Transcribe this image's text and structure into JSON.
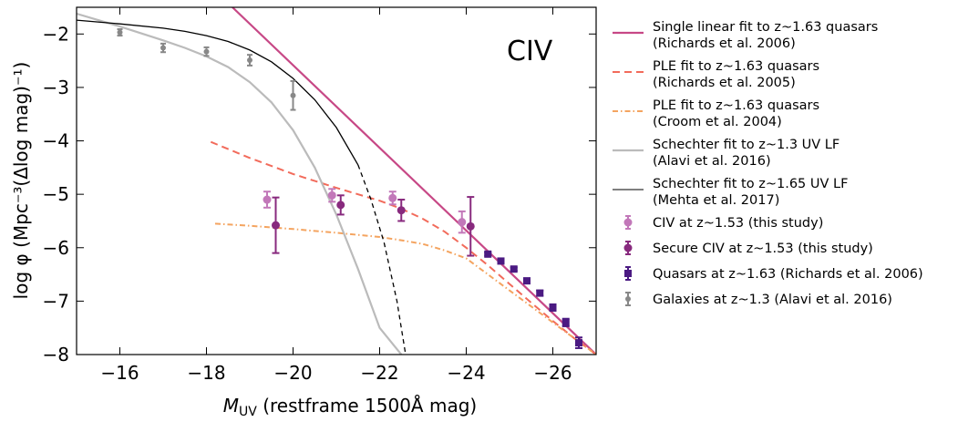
{
  "chart_data": {
    "type": "scatter",
    "annotation": "CIV",
    "xlabel": "M_UV (restframe 1500Å mag)",
    "xlabel_parts": {
      "main": "M",
      "sub": "UV",
      "rest": " (restframe 1500Å mag)"
    },
    "ylabel": "log φ (Mpc⁻³(Δlog mag)⁻¹)",
    "xlim": [
      -15,
      -27
    ],
    "ylim": [
      -8,
      -1.5
    ],
    "x_ticks": [
      -16,
      -18,
      -20,
      -22,
      -24,
      -26
    ],
    "x_tick_labels": [
      "−16",
      "−18",
      "−20",
      "−22",
      "−24",
      "−26"
    ],
    "y_ticks": [
      -8,
      -7,
      -6,
      -5,
      -4,
      -3,
      -2
    ],
    "y_tick_labels": [
      "−8",
      "−7",
      "−6",
      "−5",
      "−4",
      "−3",
      "−2"
    ],
    "colors": {
      "magenta": "#c74886",
      "salmon": "#f26b5b",
      "orange": "#f4a460",
      "lightgray": "#bbbbbb",
      "black": "#000000",
      "lightpurple": "#c278b9",
      "purple": "#882a7e",
      "darkpurple": "#4b1a82",
      "gray": "#888888"
    },
    "lines": [
      {
        "name": "Single linear fit to z~1.63 quasars",
        "color": "#c74886",
        "dash": "solid",
        "width": 2.2,
        "x": [
          -18.6,
          -27
        ],
        "y": [
          -1.5,
          -8.0
        ]
      },
      {
        "name": "PLE fit to z~1.63 quasars (Richards 2005)",
        "color": "#f26b5b",
        "dash": "8,5",
        "width": 2.0,
        "x": [
          -18.1,
          -19,
          -20,
          -21,
          -21.5,
          -22,
          -22.5,
          -23,
          -23.5,
          -24,
          -24.5,
          -25,
          -25.5,
          -26,
          -26.5,
          -27
        ],
        "y": [
          -4.02,
          -4.32,
          -4.62,
          -4.88,
          -5.0,
          -5.12,
          -5.27,
          -5.46,
          -5.7,
          -6.0,
          -6.33,
          -6.68,
          -7.03,
          -7.37,
          -7.7,
          -8.0
        ]
      },
      {
        "name": "PLE fit to z~1.63 quasars (Croom 2004)",
        "color": "#f4a460",
        "dash": "6,3,1.5,3",
        "width": 2.0,
        "x": [
          -18.2,
          -19,
          -20,
          -21,
          -22,
          -22.5,
          -23,
          -23.5,
          -24,
          -24.5,
          -25,
          -25.5,
          -26,
          -26.5,
          -27
        ],
        "y": [
          -5.55,
          -5.59,
          -5.65,
          -5.72,
          -5.8,
          -5.86,
          -5.93,
          -6.05,
          -6.2,
          -6.5,
          -6.8,
          -7.1,
          -7.4,
          -7.7,
          -8.0
        ]
      },
      {
        "name": "Schechter fit to z~1.3 UV LF",
        "color": "#bbbbbb",
        "dash": "solid",
        "width": 2.2,
        "x": [
          -15,
          -15.5,
          -16,
          -16.5,
          -17,
          -17.5,
          -18,
          -18.5,
          -19,
          -19.5,
          -20,
          -20.5,
          -21,
          -21.5,
          -22,
          -22.5
        ],
        "y": [
          -1.62,
          -1.74,
          -1.86,
          -1.99,
          -2.12,
          -2.26,
          -2.42,
          -2.62,
          -2.9,
          -3.28,
          -3.8,
          -4.5,
          -5.38,
          -6.4,
          -7.5,
          -8.0
        ]
      },
      {
        "name": "Schechter fit to z~1.65 UV LF",
        "color": "#000000",
        "dash": "solid",
        "width": 1.3,
        "x": [
          -15,
          -16,
          -17,
          -17.5,
          -18,
          -18.5,
          -19,
          -19.5,
          -20,
          -20.5,
          -21,
          -21.5
        ],
        "y": [
          -1.74,
          -1.81,
          -1.89,
          -1.95,
          -2.03,
          -2.14,
          -2.3,
          -2.52,
          -2.83,
          -3.23,
          -3.75,
          -4.45
        ]
      },
      {
        "name": "Schechter fit to z~1.65 UV LF (extrapolated)",
        "color": "#000000",
        "dash": "5,4",
        "width": 1.3,
        "x": [
          -21.5,
          -21.8,
          -22.1,
          -22.4,
          -22.6
        ],
        "y": [
          -4.45,
          -5.1,
          -5.9,
          -7.0,
          -8.0
        ]
      }
    ],
    "points": [
      {
        "name": "CIV at z~1.53 (this study)",
        "color": "#c278b9",
        "marker": "circle",
        "x": [
          -19.4,
          -20.9,
          -22.3,
          -23.9
        ],
        "y": [
          -5.1,
          -5.02,
          -5.07,
          -5.52
        ],
        "yerr": [
          0.15,
          0.12,
          0.12,
          0.2
        ]
      },
      {
        "name": "Secure CIV at z~1.53 (this study)",
        "color": "#882a7e",
        "marker": "circle",
        "x": [
          -19.6,
          -21.1,
          -22.5,
          -24.1
        ],
        "y": [
          -5.58,
          -5.2,
          -5.3,
          -5.6
        ],
        "yerr": [
          0.52,
          0.18,
          0.2,
          0.55
        ]
      },
      {
        "name": "Quasars at z~1.63 (Richards et al. 2006)",
        "color": "#4b1a82",
        "marker": "square",
        "x": [
          -24.5,
          -24.8,
          -25.1,
          -25.4,
          -25.7,
          -26.0,
          -26.3,
          -26.6
        ],
        "y": [
          -6.12,
          -6.25,
          -6.4,
          -6.62,
          -6.85,
          -7.12,
          -7.4,
          -7.78
        ],
        "yerr": [
          0.03,
          0.03,
          0.03,
          0.04,
          0.05,
          0.06,
          0.07,
          0.1
        ]
      },
      {
        "name": "Galaxies at z~1.3 (Alavi et al. 2016)",
        "color": "#888888",
        "marker": "circle-small",
        "x": [
          -16,
          -17,
          -18,
          -19,
          -20
        ],
        "y": [
          -1.97,
          -2.26,
          -2.33,
          -2.49,
          -3.15
        ],
        "yerr": [
          0.06,
          0.08,
          0.08,
          0.1,
          0.27
        ]
      }
    ],
    "legend": [
      {
        "kind": "line",
        "color": "#c74886",
        "dash": "solid",
        "width": 2.2,
        "line1": "Single linear fit to z~1.63 quasars",
        "line2": "(Richards et al. 2006)"
      },
      {
        "kind": "line",
        "color": "#f26b5b",
        "dash": "8,5",
        "width": 2.0,
        "line1": "PLE fit to z~1.63 quasars",
        "line2": "(Richards et al. 2005)"
      },
      {
        "kind": "line",
        "color": "#f4a460",
        "dash": "6,3,1.5,3",
        "width": 2.0,
        "line1": "PLE fit to z~1.63 quasars",
        "line2": "(Croom et al. 2004)"
      },
      {
        "kind": "line",
        "color": "#bbbbbb",
        "dash": "solid",
        "width": 2.2,
        "line1": "Schechter fit to z~1.3 UV LF",
        "line2": "(Alavi et al. 2016)"
      },
      {
        "kind": "line",
        "color": "#555555",
        "dash": "solid",
        "width": 1.5,
        "line1": "Schechter fit to z~1.65 UV LF",
        "line2": "(Mehta et al. 2017)"
      },
      {
        "kind": "marker",
        "marker": "circle",
        "color": "#c278b9",
        "line1": "CIV at z~1.53 (this study)",
        "line2": ""
      },
      {
        "kind": "marker",
        "marker": "circle",
        "color": "#882a7e",
        "line1": "Secure CIV at z~1.53 (this study)",
        "line2": ""
      },
      {
        "kind": "marker",
        "marker": "square",
        "color": "#4b1a82",
        "line1": "Quasars at z~1.63 (Richards et al. 2006)",
        "line2": ""
      },
      {
        "kind": "marker",
        "marker": "circle-small",
        "color": "#888888",
        "line1": "Galaxies at z~1.3 (Alavi et al. 2016)",
        "line2": ""
      }
    ]
  }
}
